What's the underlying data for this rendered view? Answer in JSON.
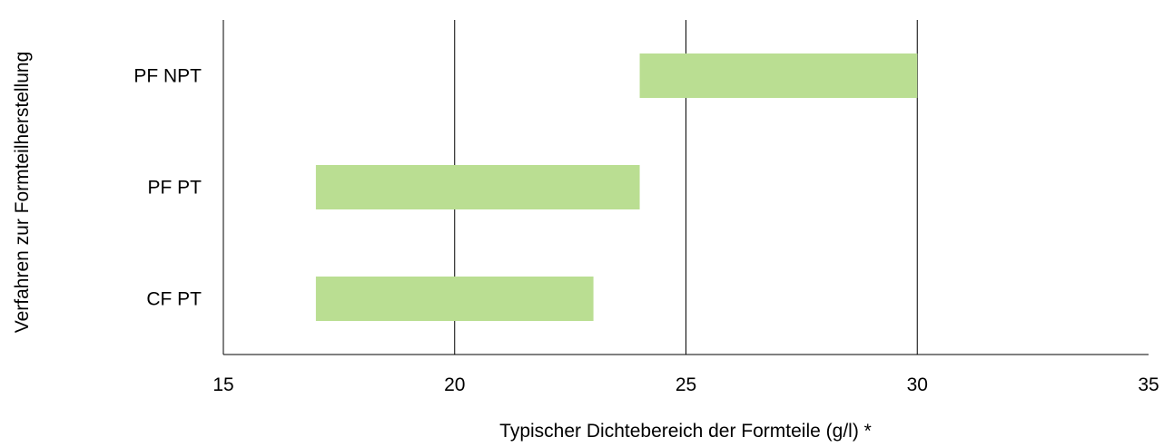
{
  "chart_data": {
    "type": "bar",
    "orientation": "horizontal",
    "style": "floating-range",
    "categories": [
      "PF NPT",
      "PF PT",
      "CF PT"
    ],
    "ranges": [
      {
        "category": "PF NPT",
        "start": 24,
        "end": 30
      },
      {
        "category": "PF PT",
        "start": 17,
        "end": 24
      },
      {
        "category": "CF PT",
        "start": 17,
        "end": 23
      }
    ],
    "xlabel": "Typischer Dichtebereich der Formteile (g/l) *",
    "ylabel": "Verfahren zur Formteilherstellung",
    "xlim": [
      15,
      35
    ],
    "xticks": [
      15,
      20,
      25,
      30,
      35
    ],
    "grid": "vertical",
    "legend": "none",
    "bar_color": "#bade92",
    "grid_color": "#000000"
  }
}
